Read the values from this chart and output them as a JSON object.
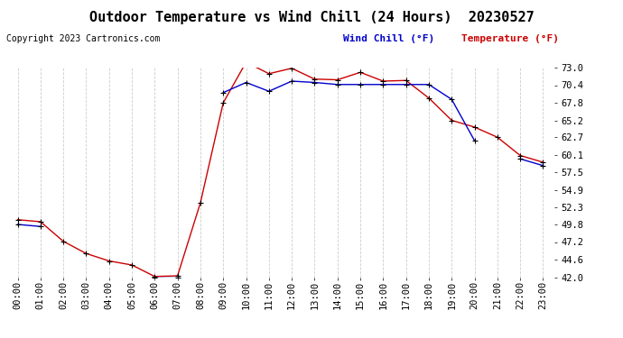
{
  "title": "Outdoor Temperature vs Wind Chill (24 Hours)  20230527",
  "copyright": "Copyright 2023 Cartronics.com",
  "legend_wind_chill": "Wind Chill (°F)",
  "legend_temperature": "Temperature (°F)",
  "hours": [
    "00:00",
    "01:00",
    "02:00",
    "03:00",
    "04:00",
    "05:00",
    "06:00",
    "07:00",
    "08:00",
    "09:00",
    "10:00",
    "11:00",
    "12:00",
    "13:00",
    "14:00",
    "15:00",
    "16:00",
    "17:00",
    "18:00",
    "19:00",
    "20:00",
    "21:00",
    "22:00",
    "23:00"
  ],
  "temperature": [
    50.5,
    50.2,
    47.3,
    45.5,
    44.4,
    43.8,
    42.1,
    42.2,
    53.0,
    67.8,
    73.8,
    72.1,
    72.9,
    71.3,
    71.2,
    72.3,
    71.0,
    71.1,
    68.5,
    65.2,
    64.2,
    62.7,
    60.0,
    59.0
  ],
  "wind_chill": [
    49.8,
    49.5,
    null,
    null,
    null,
    null,
    42.0,
    42.0,
    null,
    69.3,
    70.8,
    69.5,
    71.0,
    70.8,
    70.5,
    70.5,
    70.5,
    70.5,
    70.5,
    68.3,
    62.2,
    null,
    59.5,
    58.5
  ],
  "ylim_min": 42.0,
  "ylim_max": 73.0,
  "yticks": [
    42.0,
    44.6,
    47.2,
    49.8,
    52.3,
    54.9,
    57.5,
    60.1,
    62.7,
    65.2,
    67.8,
    70.4,
    73.0
  ],
  "temp_color": "#cc0000",
  "wind_color": "#0000cc",
  "marker_color": "#000000",
  "bg_color": "#ffffff",
  "grid_color": "#cccccc",
  "title_fontsize": 11,
  "copyright_fontsize": 7,
  "legend_fontsize": 8,
  "tick_fontsize": 7.5
}
